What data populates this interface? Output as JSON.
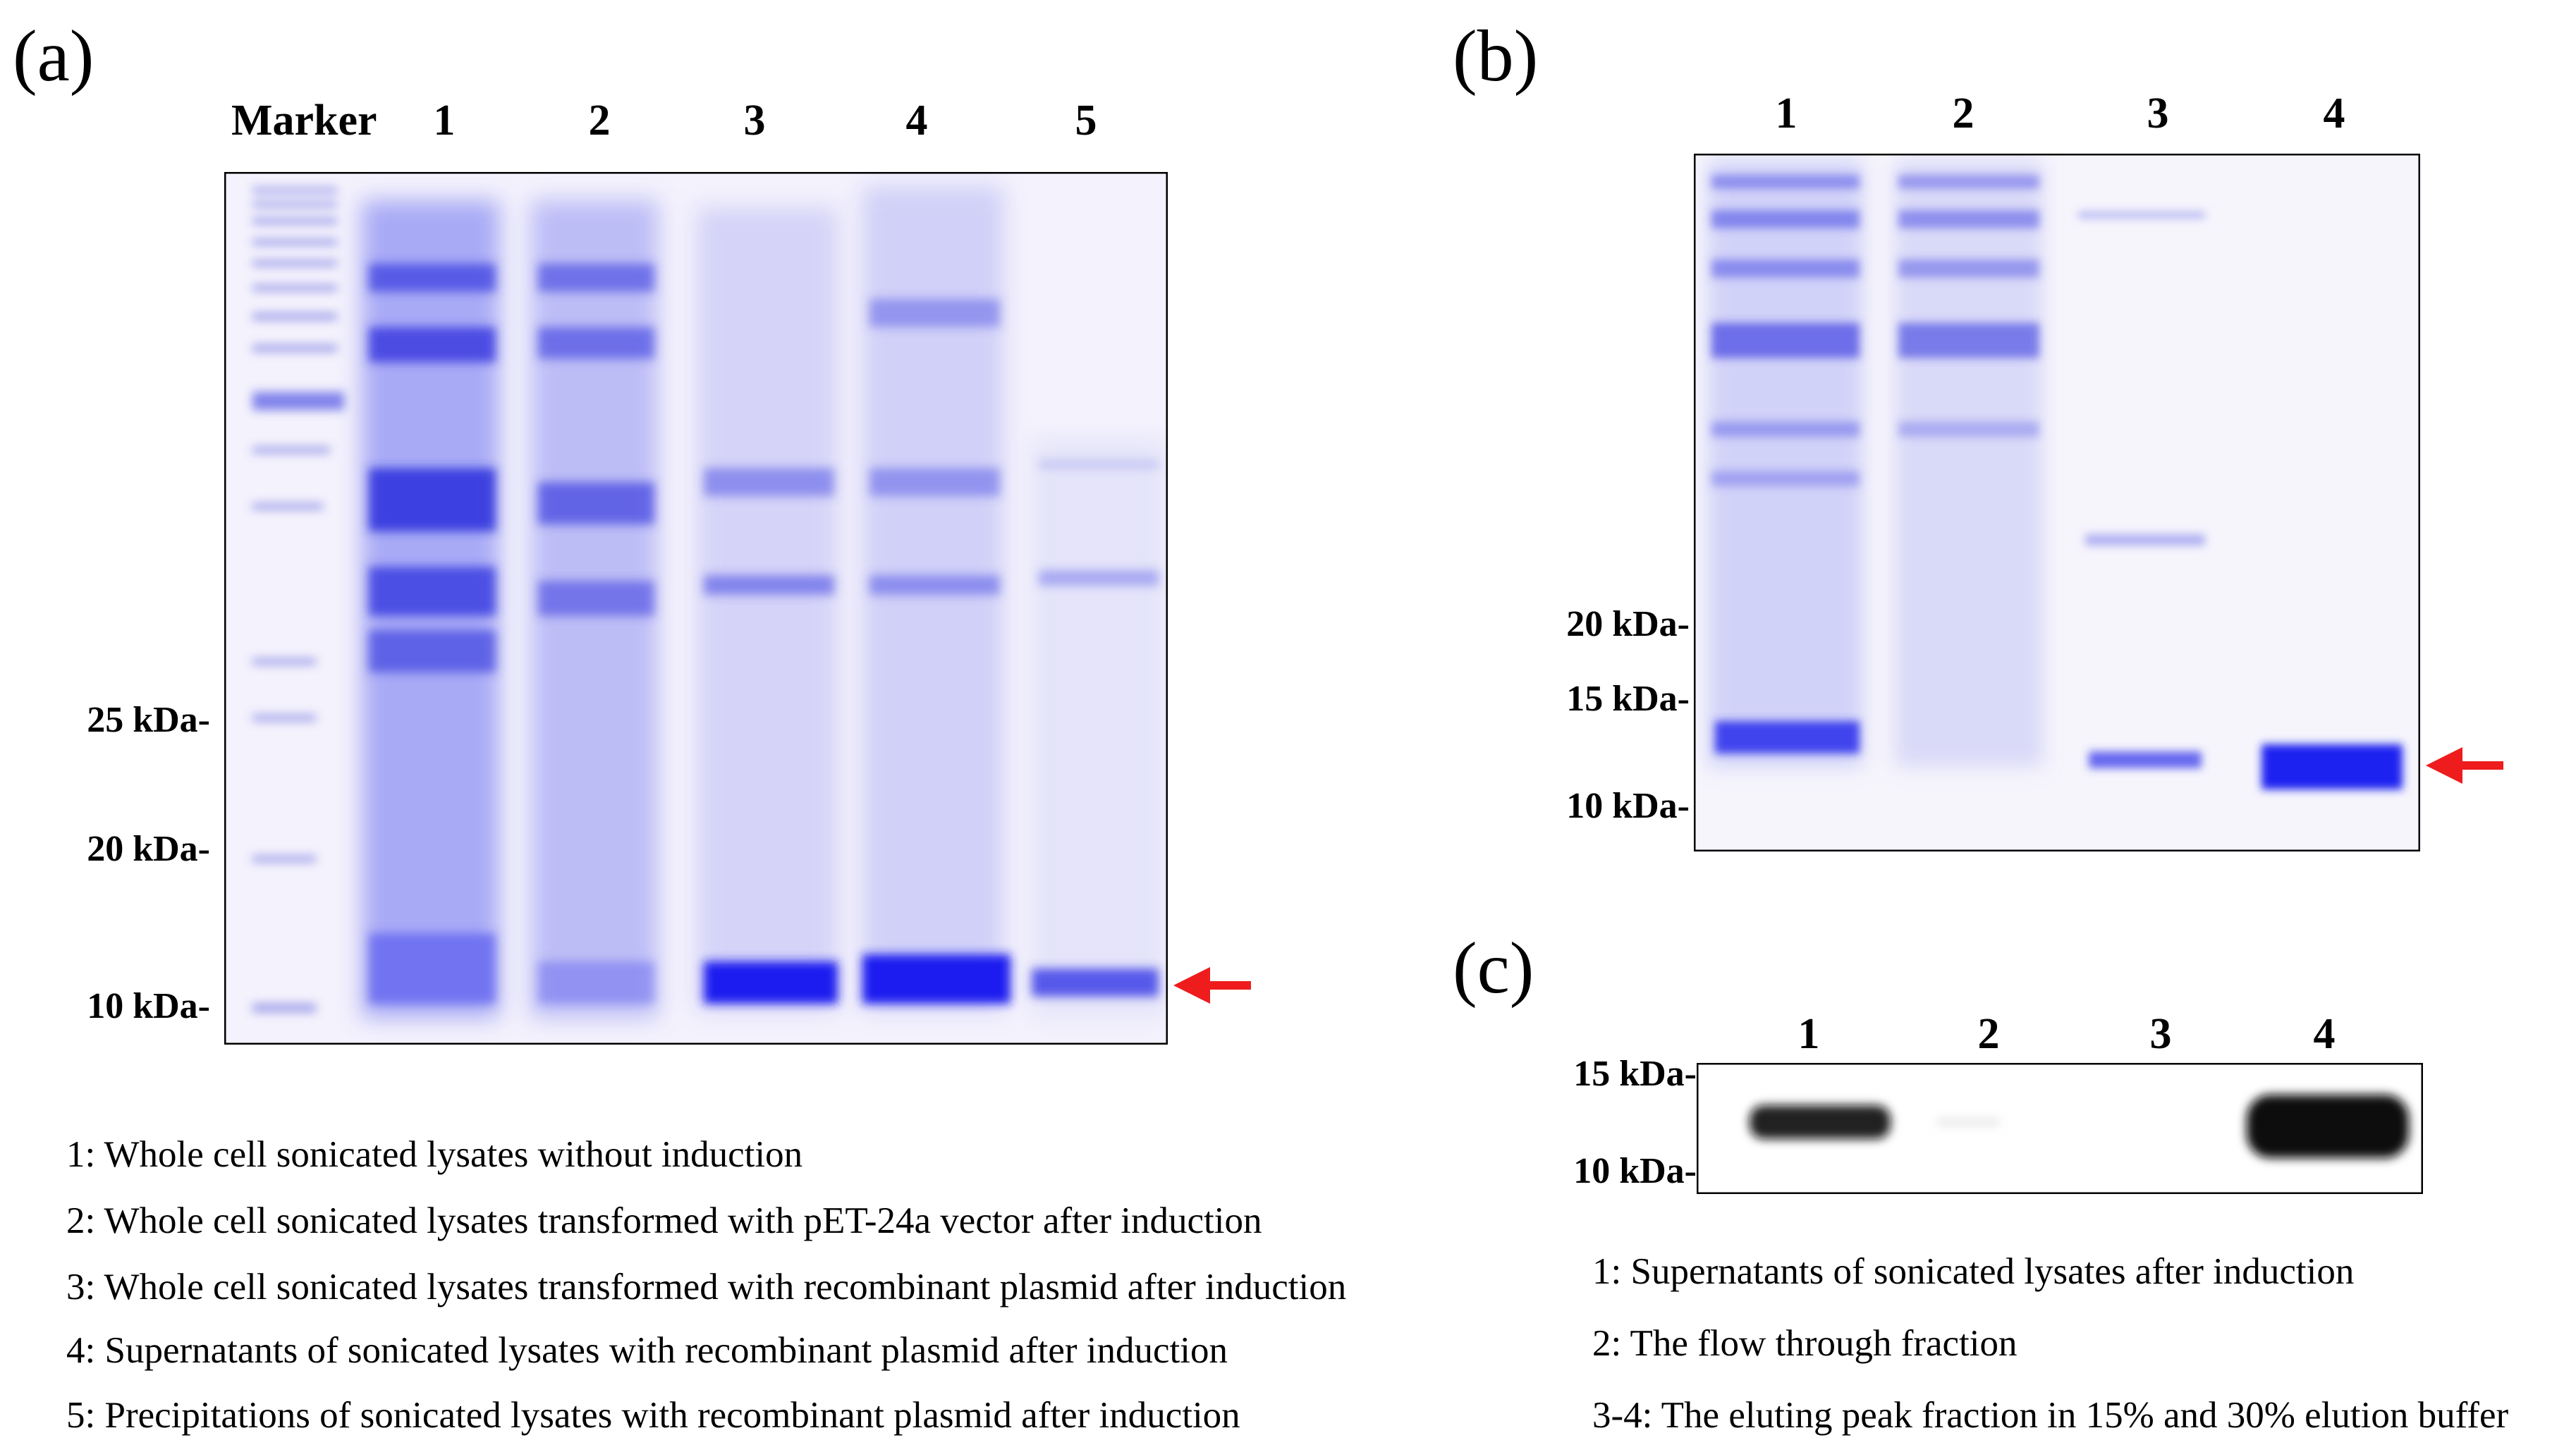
{
  "panels": {
    "a": {
      "label": "(a)",
      "marker_label": "Marker",
      "lanes": [
        "1",
        "2",
        "3",
        "4",
        "5"
      ],
      "mw": [
        "25 kDa-",
        "20 kDa-",
        "10 kDa-"
      ],
      "legend": [
        "1: Whole cell sonicated lysates without induction",
        "2: Whole cell sonicated lysates transformed with pET-24a vector after induction",
        "3: Whole cell sonicated lysates transformed with recombinant plasmid after induction",
        "4: Supernatants of sonicated lysates with recombinant plasmid after induction",
        "5: Precipitations of sonicated lysates with recombinant plasmid after induction"
      ]
    },
    "b": {
      "label": "(b)",
      "lanes": [
        "1",
        "2",
        "3",
        "4"
      ],
      "mw": [
        "20 kDa-",
        "15 kDa-",
        "10 kDa-"
      ]
    },
    "c": {
      "label": "(c)",
      "lanes": [
        "1",
        "2",
        "3",
        "4"
      ],
      "mw": [
        "15 kDa-",
        "10 kDa-"
      ],
      "legend": [
        "1: Supernatants of sonicated lysates after induction",
        "2: The flow through fraction",
        "3-4: The eluting peak fraction in 15% and 30% elution buffer"
      ]
    }
  },
  "colors": {
    "arrow": "#ee1c1c",
    "stain": "#3a3ee6",
    "blot": "#000000"
  }
}
